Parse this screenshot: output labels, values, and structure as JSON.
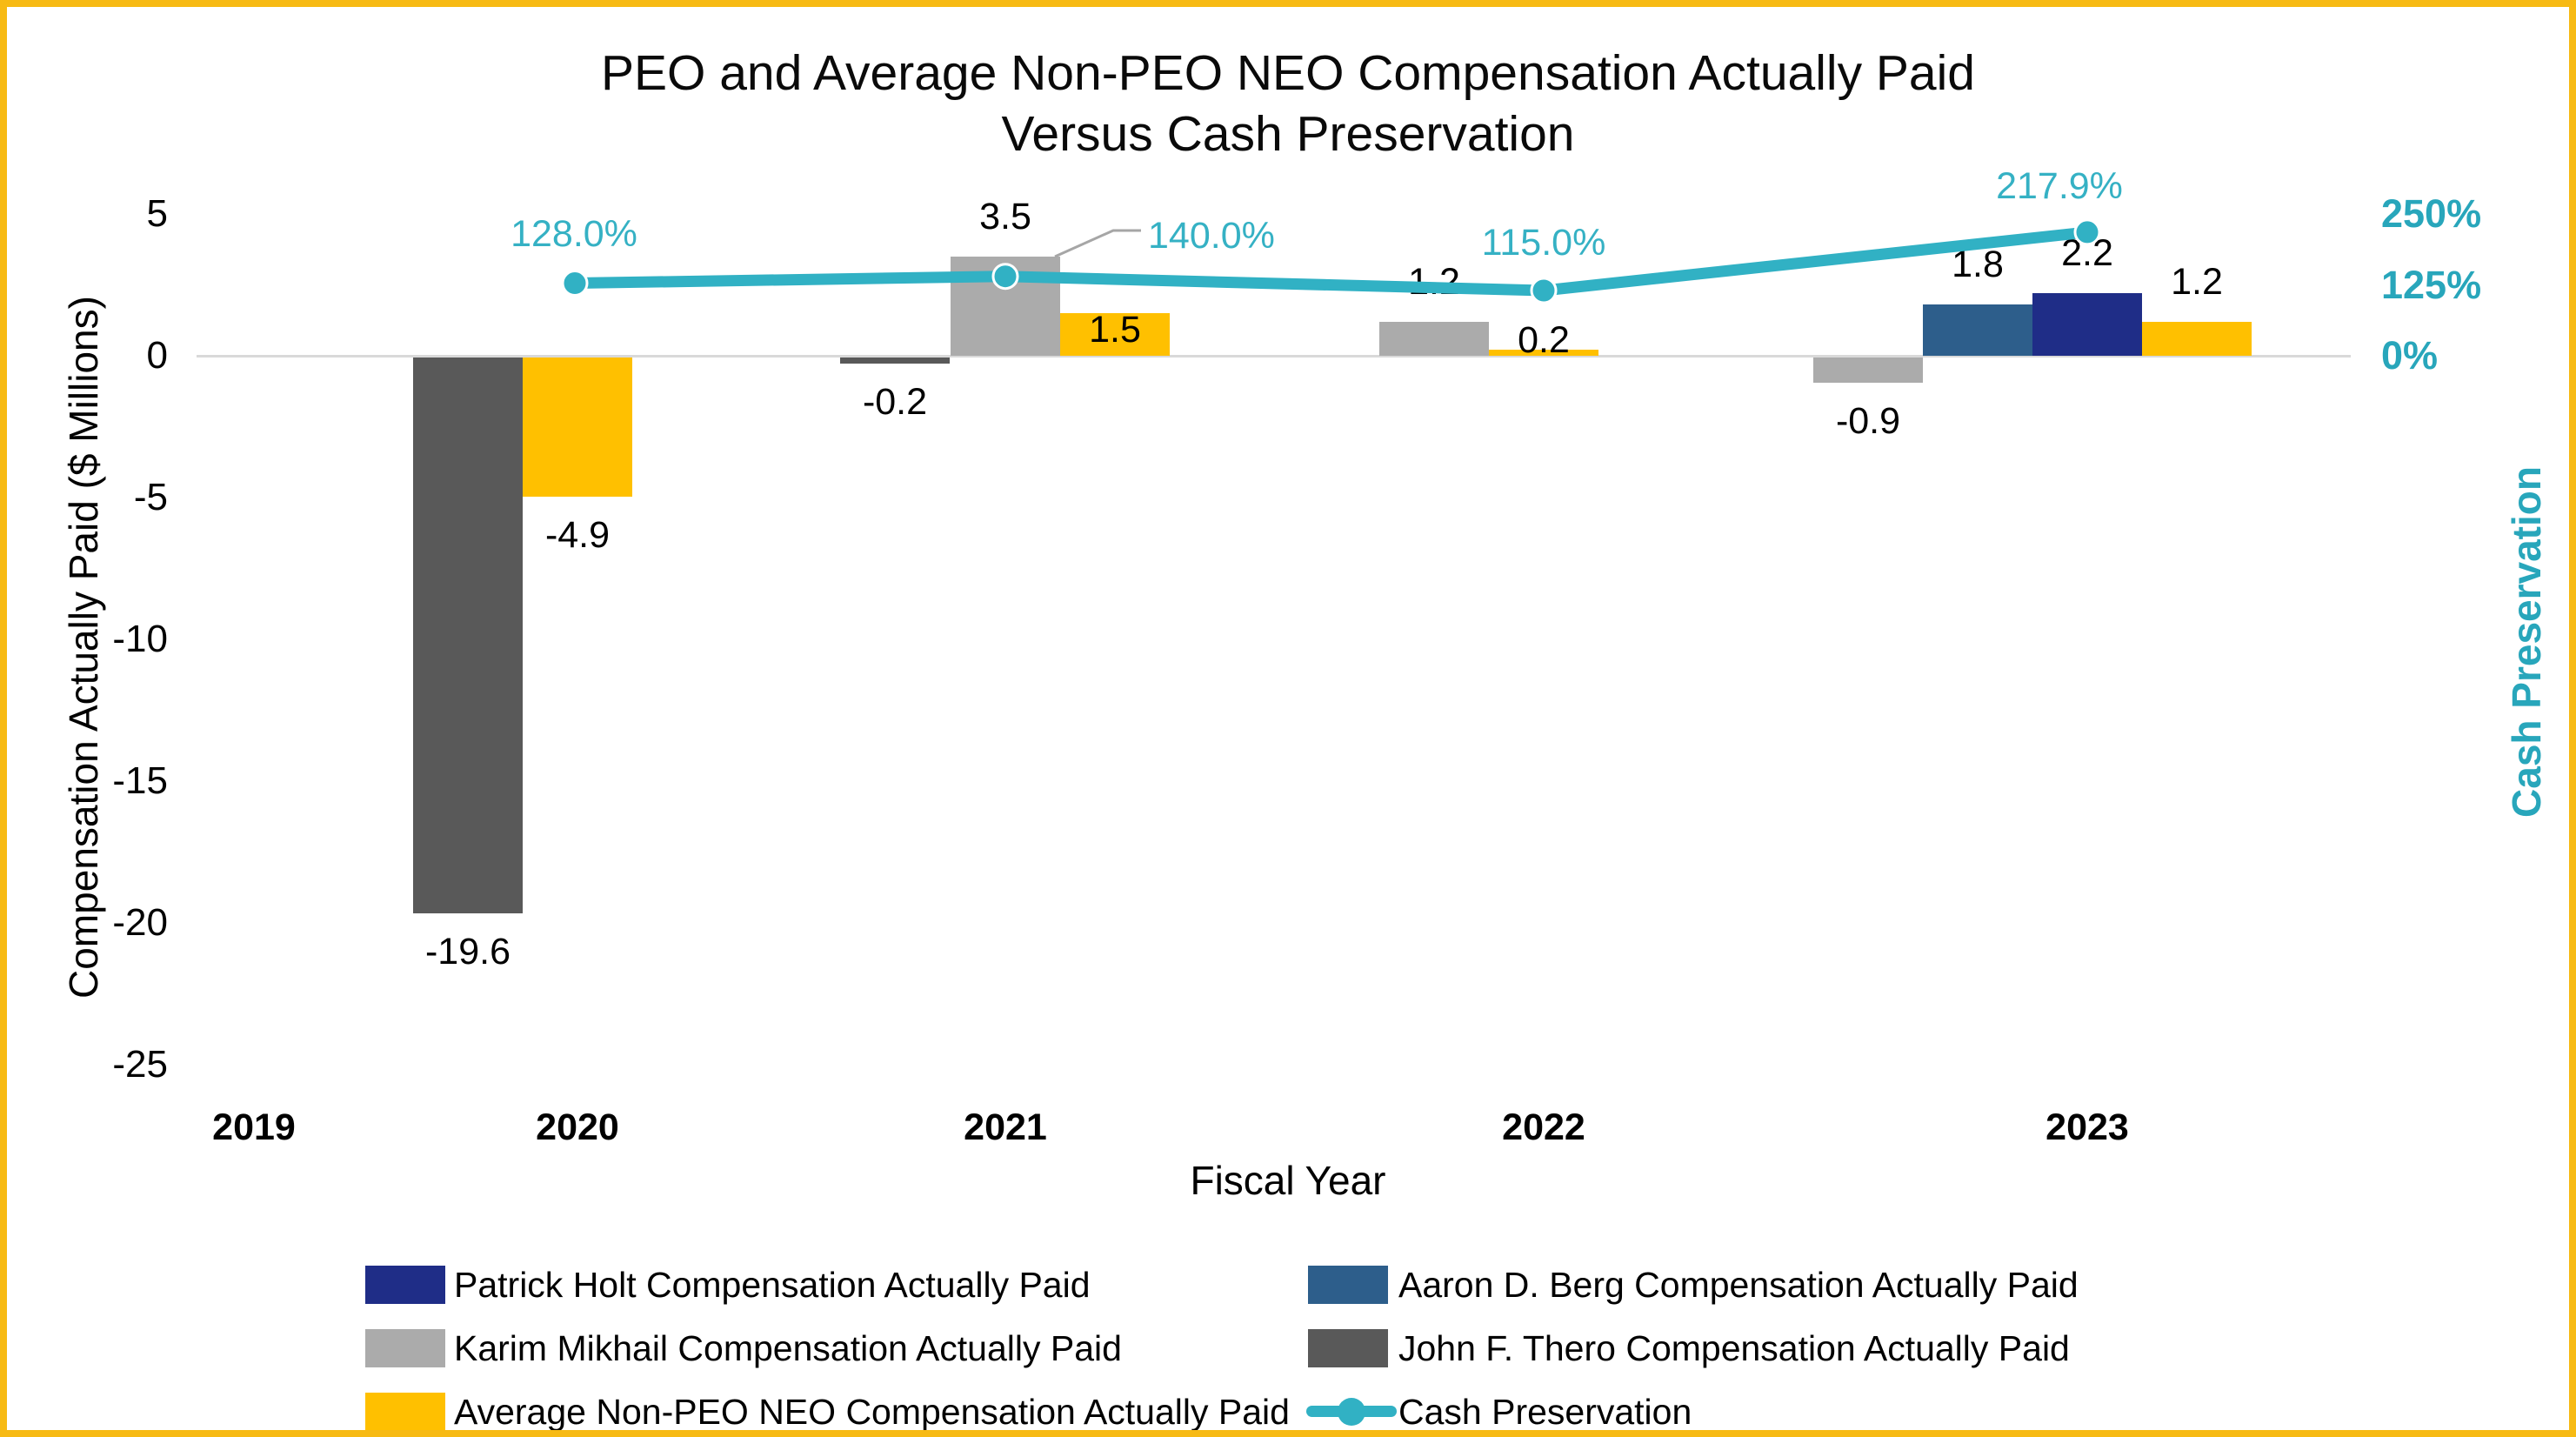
{
  "title": {
    "line1": "PEO and Average Non-PEO NEO Compensation Actually Paid",
    "line2": "Versus Cash Preservation"
  },
  "axes": {
    "left": {
      "title": "Compensation Actually Paid ($ Millions)",
      "ticks": [
        {
          "label": "5",
          "value": 5
        },
        {
          "label": "0",
          "value": 0
        },
        {
          "label": "-5",
          "value": -5
        },
        {
          "label": "-10",
          "value": -10
        },
        {
          "label": "-15",
          "value": -15
        },
        {
          "label": "-20",
          "value": -20
        },
        {
          "label": "-25",
          "value": -25
        }
      ]
    },
    "right": {
      "title": "Cash Preservation",
      "ticks": [
        {
          "label": "250%",
          "value": 250
        },
        {
          "label": "125%",
          "value": 125
        },
        {
          "label": "0%",
          "value": 0
        }
      ]
    },
    "x": {
      "title": "Fiscal Year",
      "categories": [
        "2019",
        "2020",
        "2021",
        "2022",
        "2023"
      ]
    }
  },
  "chart_data": {
    "type": "bar+line",
    "categories": [
      "2019",
      "2020",
      "2021",
      "2022",
      "2023"
    ],
    "y_left_range": [
      -25,
      5
    ],
    "y_right_range_pct": [
      0,
      250
    ],
    "grid": "zero-line-only",
    "series": [
      {
        "id": "patrick_holt",
        "type": "bar",
        "color": "#1F2D87",
        "name": "Patrick Holt Compensation Actually Paid",
        "values": [
          null,
          null,
          null,
          null,
          2.2
        ],
        "data_labels": [
          null,
          null,
          null,
          null,
          "2.2"
        ],
        "label_pos": [
          null,
          null,
          null,
          null,
          "above"
        ]
      },
      {
        "id": "aaron_berg",
        "type": "bar",
        "color": "#2D5E8B",
        "name": "Aaron D. Berg Compensation Actually Paid",
        "values": [
          null,
          null,
          null,
          null,
          1.8
        ],
        "data_labels": [
          null,
          null,
          null,
          null,
          "1.8"
        ],
        "label_pos": [
          null,
          null,
          null,
          null,
          "above"
        ]
      },
      {
        "id": "karim_mikhail",
        "type": "bar",
        "color": "#ABABAB",
        "name": "Karim Mikhail Compensation Actually Paid",
        "values": [
          null,
          null,
          3.5,
          1.2,
          -0.9
        ],
        "data_labels": [
          null,
          null,
          "3.5",
          "1.2",
          "-0.9"
        ],
        "label_pos": [
          null,
          null,
          "above",
          "above",
          "below"
        ]
      },
      {
        "id": "john_thero",
        "type": "bar",
        "color": "#595959",
        "name": "John F. Thero Compensation Actually Paid",
        "values": [
          null,
          -19.6,
          -0.2,
          null,
          null
        ],
        "data_labels": [
          null,
          "-19.6",
          "-0.2",
          null,
          null
        ],
        "label_pos": [
          null,
          "below",
          "below",
          null,
          null
        ]
      },
      {
        "id": "avg_neo",
        "type": "bar",
        "color": "#FFC000",
        "name": "Average Non-PEO NEO Compensation Actually Paid",
        "values": [
          null,
          -4.9,
          1.5,
          0.2,
          1.2
        ],
        "data_labels": [
          null,
          "-4.9",
          "1.5",
          "0.2",
          "1.2"
        ],
        "label_pos": [
          null,
          "below",
          "inside",
          "above_tight",
          "above"
        ]
      },
      {
        "id": "cash_preservation",
        "type": "line",
        "color": "#31B1C4",
        "name": "Cash Preservation",
        "values_pct": [
          null,
          128.0,
          140.0,
          115.0,
          217.9
        ],
        "data_labels": [
          null,
          "128.0%",
          "140.0%",
          "115.0%",
          "217.9%"
        ]
      }
    ]
  },
  "legend": {
    "items": [
      {
        "id": "patrick_holt",
        "marker": "rect"
      },
      {
        "id": "aaron_berg",
        "marker": "rect"
      },
      {
        "id": "karim_mikhail",
        "marker": "rect"
      },
      {
        "id": "john_thero",
        "marker": "rect"
      },
      {
        "id": "avg_neo",
        "marker": "rect"
      },
      {
        "id": "cash_preservation",
        "marker": "line"
      }
    ]
  },
  "frame": {
    "border_color": "#F7BA14",
    "background": "#FFFFFF",
    "gridline_color": "#D9D9D9",
    "leader_color": "#A6A6A6"
  }
}
